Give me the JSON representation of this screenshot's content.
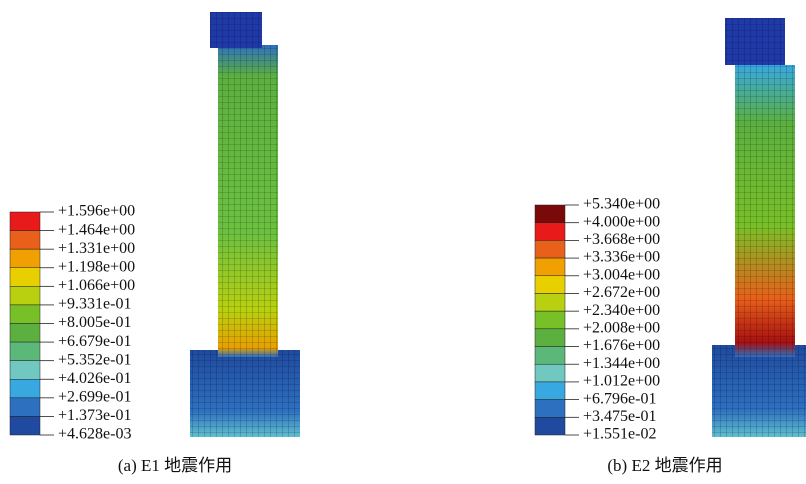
{
  "panels": [
    {
      "caption": "(a) E1 地震作用",
      "legend": {
        "labels": [
          "+1.596e+00",
          "+1.464e+00",
          "+1.331e+00",
          "+1.198e+00",
          "+1.066e+00",
          "+9.331e-01",
          "+8.005e-01",
          "+6.679e-01",
          "+5.352e-01",
          "+4.026e-01",
          "+2.699e-01",
          "+1.373e-01",
          "+4.628e-03"
        ],
        "colors": [
          "#e81a1a",
          "#e8601a",
          "#f0a000",
          "#e8d000",
          "#b8d010",
          "#78c028",
          "#5cb040",
          "#5cb878",
          "#70c8c0",
          "#38a8e0",
          "#2e70c0",
          "#1f4aa0"
        ]
      }
    },
    {
      "caption": "(b) E2 地震作用",
      "legend": {
        "labels": [
          "+5.340e+00",
          "+4.000e+00",
          "+3.668e+00",
          "+3.336e+00",
          "+3.004e+00",
          "+2.672e+00",
          "+2.340e+00",
          "+2.008e+00",
          "+1.676e+00",
          "+1.344e+00",
          "+1.012e+00",
          "+6.796e-01",
          "+3.475e-01",
          "+1.551e-02"
        ],
        "colors": [
          "#7a0a0a",
          "#e81a1a",
          "#e8601a",
          "#f0a000",
          "#e8d000",
          "#b8d010",
          "#78c028",
          "#5cb040",
          "#5cb878",
          "#70c8c0",
          "#38a8e0",
          "#2e70c0",
          "#1f4aa0"
        ]
      }
    }
  ]
}
